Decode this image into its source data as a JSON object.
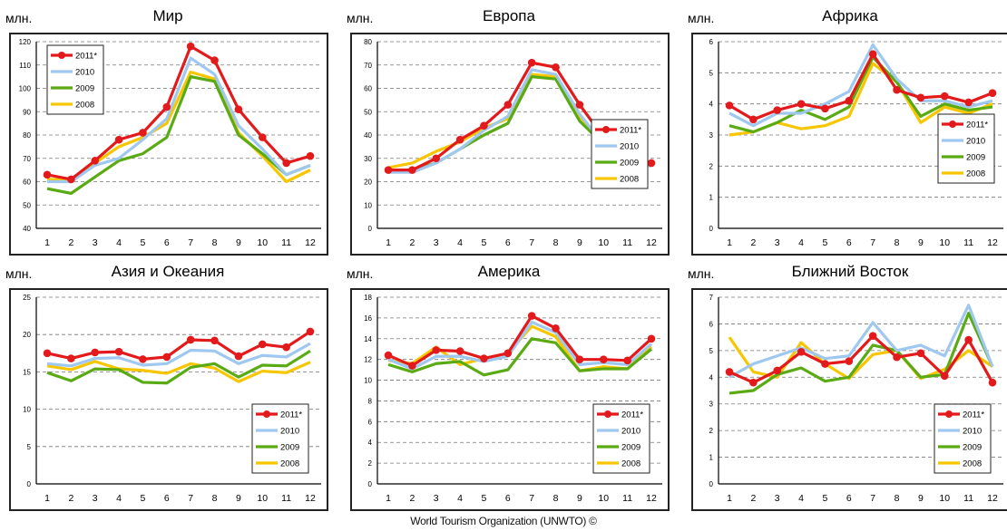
{
  "unit_label": "млн.",
  "footer": "World Tourism Organization (UNWTO) ©",
  "colors": {
    "2011*": "#e31a1c",
    "2010": "#9fc8f0",
    "2009": "#5aaa14",
    "2008": "#f7c600"
  },
  "chart_data": [
    {
      "type": "line",
      "title": "Мир",
      "x": [
        1,
        2,
        3,
        4,
        5,
        6,
        7,
        8,
        9,
        10,
        11,
        12
      ],
      "ylim": [
        40,
        120
      ],
      "yticks": [
        40,
        50,
        60,
        70,
        80,
        90,
        100,
        110,
        120
      ],
      "legend": "top-left",
      "grid": true,
      "series": [
        {
          "name": "2011*",
          "values": [
            63,
            61,
            69,
            78,
            81,
            92,
            118,
            112,
            91,
            79,
            68,
            71
          ]
        },
        {
          "name": "2010",
          "values": [
            60,
            60,
            67,
            70,
            78,
            87,
            113,
            106,
            84,
            74,
            63,
            67
          ]
        },
        {
          "name": "2009",
          "values": [
            57,
            55,
            62,
            69,
            72,
            79,
            105,
            103,
            80,
            72,
            63,
            67
          ]
        },
        {
          "name": "2008",
          "values": [
            61,
            61,
            68,
            75,
            79,
            85,
            107,
            104,
            81,
            71,
            60,
            65
          ]
        }
      ]
    },
    {
      "type": "line",
      "title": "Европа",
      "x": [
        1,
        2,
        3,
        4,
        5,
        6,
        7,
        8,
        9,
        10,
        11,
        12
      ],
      "ylim": [
        0,
        80
      ],
      "yticks": [
        0,
        10,
        20,
        30,
        40,
        50,
        60,
        70,
        80
      ],
      "legend": "center-right",
      "grid": true,
      "series": [
        {
          "name": "2011*",
          "values": [
            25,
            25,
            30,
            38,
            44,
            53,
            71,
            69,
            53,
            39,
            28,
            28
          ]
        },
        {
          "name": "2010",
          "values": [
            24,
            24,
            28,
            34,
            42,
            48,
            68,
            66,
            49,
            36,
            26,
            27
          ]
        },
        {
          "name": "2009",
          "values": [
            24,
            25,
            28,
            34,
            40,
            45,
            65,
            64,
            46,
            36,
            26,
            27
          ]
        },
        {
          "name": "2008",
          "values": [
            26,
            28,
            33,
            37,
            43,
            47,
            66,
            65,
            48,
            37,
            26,
            27
          ]
        }
      ]
    },
    {
      "type": "line",
      "title": "Африка",
      "x": [
        1,
        2,
        3,
        4,
        5,
        6,
        7,
        8,
        9,
        10,
        11,
        12
      ],
      "ylim": [
        0,
        6
      ],
      "yticks": [
        0,
        1,
        2,
        3,
        4,
        5,
        6
      ],
      "legend": "right",
      "grid": true,
      "series": [
        {
          "name": "2011*",
          "values": [
            3.95,
            3.5,
            3.8,
            4.0,
            3.85,
            4.1,
            5.6,
            4.45,
            4.2,
            4.25,
            4.05,
            4.35
          ]
        },
        {
          "name": "2010",
          "values": [
            3.7,
            3.3,
            3.7,
            3.7,
            4.0,
            4.4,
            5.9,
            4.8,
            4.1,
            4.1,
            3.9,
            4.1
          ]
        },
        {
          "name": "2009",
          "values": [
            3.3,
            3.1,
            3.4,
            3.8,
            3.5,
            3.9,
            5.5,
            4.7,
            3.6,
            4.0,
            3.8,
            3.9
          ]
        },
        {
          "name": "2008",
          "values": [
            3.0,
            3.1,
            3.4,
            3.2,
            3.3,
            3.6,
            5.3,
            4.7,
            3.4,
            3.9,
            3.7,
            4.0
          ]
        }
      ]
    },
    {
      "type": "line",
      "title": "Азия и Океания",
      "x": [
        1,
        2,
        3,
        4,
        5,
        6,
        7,
        8,
        9,
        10,
        11,
        12
      ],
      "ylim": [
        0,
        25
      ],
      "yticks": [
        0,
        5,
        10,
        15,
        20,
        25
      ],
      "legend": "bottom-right",
      "grid": true,
      "series": [
        {
          "name": "2011*",
          "values": [
            17.5,
            16.8,
            17.6,
            17.7,
            16.7,
            17.0,
            19.3,
            19.2,
            17.1,
            18.7,
            18.3,
            20.4
          ]
        },
        {
          "name": "2010",
          "values": [
            16.1,
            15.8,
            16.8,
            16.9,
            15.9,
            16.1,
            17.9,
            17.8,
            16.1,
            17.2,
            17.0,
            18.8
          ]
        },
        {
          "name": "2009",
          "values": [
            14.9,
            13.8,
            15.4,
            15.3,
            13.6,
            13.5,
            15.6,
            16.1,
            14.3,
            15.9,
            15.8,
            17.8
          ]
        },
        {
          "name": "2008",
          "values": [
            15.8,
            15.3,
            16.4,
            15.4,
            15.2,
            14.8,
            16.1,
            15.5,
            13.7,
            15.1,
            14.9,
            16.3
          ]
        }
      ]
    },
    {
      "type": "line",
      "title": "Америка",
      "x": [
        1,
        2,
        3,
        4,
        5,
        6,
        7,
        8,
        9,
        10,
        11,
        12
      ],
      "ylim": [
        0,
        18
      ],
      "yticks": [
        0,
        2,
        4,
        6,
        8,
        10,
        12,
        14,
        16,
        18
      ],
      "legend": "bottom-right",
      "grid": true,
      "series": [
        {
          "name": "2011*",
          "values": [
            12.4,
            11.4,
            12.9,
            12.8,
            12.1,
            12.6,
            16.2,
            15.0,
            12.0,
            12.0,
            11.9,
            14.0
          ]
        },
        {
          "name": "2010",
          "values": [
            12.0,
            11.1,
            12.3,
            12.3,
            11.8,
            12.3,
            15.6,
            14.6,
            11.5,
            11.7,
            11.5,
            13.5
          ]
        },
        {
          "name": "2009",
          "values": [
            11.5,
            10.8,
            11.6,
            11.8,
            10.5,
            11.0,
            14.0,
            13.6,
            10.9,
            11.1,
            11.1,
            13.0
          ]
        },
        {
          "name": "2008",
          "values": [
            11.9,
            11.6,
            13.2,
            11.5,
            12.1,
            12.6,
            15.2,
            14.2,
            10.9,
            11.3,
            11.1,
            13.2
          ]
        }
      ]
    },
    {
      "type": "line",
      "title": "Ближний Восток",
      "x": [
        1,
        2,
        3,
        4,
        5,
        6,
        7,
        8,
        9,
        10,
        11,
        12
      ],
      "ylim": [
        0,
        7
      ],
      "yticks": [
        0,
        1,
        2,
        3,
        4,
        5,
        6,
        7
      ],
      "legend": "bottom-right",
      "grid": true,
      "series": [
        {
          "name": "2011*",
          "values": [
            4.2,
            3.8,
            4.25,
            4.95,
            4.5,
            4.6,
            5.55,
            4.75,
            4.9,
            4.05,
            5.4,
            3.8
          ]
        },
        {
          "name": "2010",
          "values": [
            4.0,
            4.5,
            4.8,
            5.1,
            4.7,
            4.8,
            6.05,
            5.0,
            5.2,
            4.8,
            6.7,
            4.4
          ]
        },
        {
          "name": "2009",
          "values": [
            3.4,
            3.5,
            4.1,
            4.35,
            3.85,
            4.0,
            5.2,
            5.0,
            4.0,
            4.1,
            6.4,
            4.4
          ]
        },
        {
          "name": "2008",
          "values": [
            5.5,
            4.2,
            4.0,
            5.3,
            4.5,
            3.95,
            4.85,
            5.0,
            3.95,
            4.3,
            5.0,
            4.4
          ]
        }
      ]
    }
  ]
}
